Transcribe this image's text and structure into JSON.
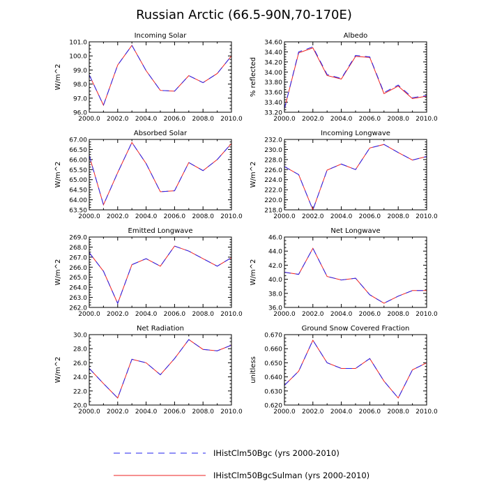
{
  "title": "Russian Arctic (66.5-90N,70-170E)",
  "legend": [
    {
      "label": "IHistClm50Bgc (yrs 2000-2010)",
      "color": "#2222ee",
      "dash": "dashed"
    },
    {
      "label": "IHistClm50BgcSulman (yrs 2000-2010)",
      "color": "#ee2222",
      "dash": "solid"
    }
  ],
  "chart_data": [
    {
      "type": "line",
      "title": "Incoming Solar",
      "ylabel": "W/m^2",
      "x": [
        2000,
        2001,
        2002,
        2003,
        2004,
        2005,
        2006,
        2007,
        2008,
        2009,
        2010
      ],
      "xlim": [
        2000,
        2010
      ],
      "ylim": [
        96.0,
        101.0
      ],
      "xticks": [
        "2000.0",
        "2002.0",
        "2004.0",
        "2006.0",
        "2008.0",
        "2010.0"
      ],
      "yticks": [
        "96.0",
        "97.0",
        "98.0",
        "99.0",
        "100.0",
        "101.0"
      ],
      "series": [
        {
          "values": [
            98.65,
            96.5,
            99.35,
            100.75,
            98.95,
            97.55,
            97.5,
            98.6,
            98.1,
            98.75,
            100.0
          ]
        },
        {
          "values": [
            98.65,
            96.5,
            99.35,
            100.75,
            98.95,
            97.55,
            97.5,
            98.6,
            98.1,
            98.75,
            100.0
          ]
        }
      ]
    },
    {
      "type": "line",
      "title": "Albedo",
      "ylabel": "% reflected",
      "x": [
        2000,
        2001,
        2002,
        2003,
        2004,
        2005,
        2006,
        2007,
        2008,
        2009,
        2010
      ],
      "xlim": [
        2000,
        2010
      ],
      "ylim": [
        33.2,
        34.6
      ],
      "xticks": [
        "2000.0",
        "2002.0",
        "2004.0",
        "2006.0",
        "2008.0",
        "2010.0"
      ],
      "yticks": [
        "33.20",
        "33.40",
        "33.60",
        "33.80",
        "34.00",
        "34.20",
        "34.40",
        "34.60"
      ],
      "series": [
        {
          "values": [
            33.27,
            34.4,
            34.5,
            33.95,
            33.87,
            34.33,
            34.3,
            33.59,
            33.74,
            33.49,
            33.53
          ]
        },
        {
          "values": [
            33.27,
            34.38,
            34.48,
            33.93,
            33.86,
            34.31,
            34.29,
            33.57,
            33.72,
            33.47,
            33.52
          ]
        }
      ]
    },
    {
      "type": "line",
      "title": "Absorbed Solar",
      "ylabel": "W/m^2",
      "x": [
        2000,
        2001,
        2002,
        2003,
        2004,
        2005,
        2006,
        2007,
        2008,
        2009,
        2010
      ],
      "xlim": [
        2000,
        2010
      ],
      "ylim": [
        63.5,
        67.0
      ],
      "xticks": [
        "2000.0",
        "2002.0",
        "2004.0",
        "2006.0",
        "2008.0",
        "2010.0"
      ],
      "yticks": [
        "63.50",
        "64.00",
        "64.50",
        "65.00",
        "65.50",
        "66.00",
        "66.50",
        "67.00"
      ],
      "series": [
        {
          "values": [
            66.2,
            63.75,
            65.35,
            66.85,
            65.8,
            64.4,
            64.45,
            65.85,
            65.45,
            66.0,
            66.8
          ]
        },
        {
          "values": [
            66.2,
            63.75,
            65.35,
            66.85,
            65.8,
            64.4,
            64.45,
            65.85,
            65.45,
            66.0,
            66.8
          ]
        }
      ]
    },
    {
      "type": "line",
      "title": "Incoming Longwave",
      "ylabel": "W/m^2",
      "x": [
        2000,
        2001,
        2002,
        2003,
        2004,
        2005,
        2006,
        2007,
        2008,
        2009,
        2010
      ],
      "xlim": [
        2000,
        2010
      ],
      "ylim": [
        218.0,
        232.0
      ],
      "xticks": [
        "2000.0",
        "2002.0",
        "2004.0",
        "2006.0",
        "2008.0",
        "2010.0"
      ],
      "yticks": [
        "218.0",
        "220.0",
        "222.0",
        "224.0",
        "226.0",
        "228.0",
        "230.0",
        "232.0"
      ],
      "series": [
        {
          "values": [
            226.6,
            225.0,
            218.0,
            225.9,
            227.1,
            226.0,
            230.3,
            231.0,
            229.4,
            227.9,
            228.6
          ]
        },
        {
          "values": [
            226.6,
            225.0,
            218.0,
            225.9,
            227.1,
            226.0,
            230.3,
            231.0,
            229.4,
            227.9,
            228.6
          ]
        }
      ]
    },
    {
      "type": "line",
      "title": "Emitted Longwave",
      "ylabel": "W/m^2",
      "x": [
        2000,
        2001,
        2002,
        2003,
        2004,
        2005,
        2006,
        2007,
        2008,
        2009,
        2010
      ],
      "xlim": [
        2000,
        2010
      ],
      "ylim": [
        262.0,
        269.0
      ],
      "xticks": [
        "2000.0",
        "2002.0",
        "2004.0",
        "2006.0",
        "2008.0",
        "2010.0"
      ],
      "yticks": [
        "262.0",
        "263.0",
        "264.0",
        "265.0",
        "266.0",
        "267.0",
        "268.0",
        "269.0"
      ],
      "series": [
        {
          "values": [
            267.45,
            265.6,
            262.4,
            266.25,
            266.85,
            266.1,
            268.1,
            267.6,
            266.85,
            266.1,
            266.95
          ]
        },
        {
          "values": [
            267.45,
            265.6,
            262.4,
            266.25,
            266.85,
            266.1,
            268.1,
            267.6,
            266.85,
            266.1,
            266.95
          ]
        }
      ]
    },
    {
      "type": "line",
      "title": "Net Longwave",
      "ylabel": "W/m^2",
      "x": [
        2000,
        2001,
        2002,
        2003,
        2004,
        2005,
        2006,
        2007,
        2008,
        2009,
        2010
      ],
      "xlim": [
        2000,
        2010
      ],
      "ylim": [
        36.0,
        46.0
      ],
      "xticks": [
        "2000.0",
        "2002.0",
        "2004.0",
        "2006.0",
        "2008.0",
        "2010.0"
      ],
      "yticks": [
        "36.0",
        "38.0",
        "40.0",
        "42.0",
        "44.0",
        "46.0"
      ],
      "series": [
        {
          "values": [
            41.0,
            40.7,
            44.4,
            40.4,
            39.9,
            40.15,
            37.8,
            36.6,
            37.6,
            38.4,
            38.4
          ]
        },
        {
          "values": [
            41.0,
            40.7,
            44.4,
            40.4,
            39.9,
            40.15,
            37.8,
            36.6,
            37.6,
            38.4,
            38.4
          ]
        }
      ]
    },
    {
      "type": "line",
      "title": "Net Radiation",
      "ylabel": "W/m^2",
      "x": [
        2000,
        2001,
        2002,
        2003,
        2004,
        2005,
        2006,
        2007,
        2008,
        2009,
        2010
      ],
      "xlim": [
        2000,
        2010
      ],
      "ylim": [
        20.0,
        30.0
      ],
      "xticks": [
        "2000.0",
        "2002.0",
        "2004.0",
        "2006.0",
        "2008.0",
        "2010.0"
      ],
      "yticks": [
        "20.0",
        "22.0",
        "24.0",
        "26.0",
        "28.0",
        "30.0"
      ],
      "series": [
        {
          "values": [
            25.2,
            23.05,
            21.0,
            26.5,
            26.0,
            24.3,
            26.6,
            29.3,
            27.9,
            27.7,
            28.5
          ]
        },
        {
          "values": [
            25.2,
            23.05,
            21.0,
            26.5,
            26.0,
            24.3,
            26.6,
            29.3,
            27.9,
            27.7,
            28.5
          ]
        }
      ]
    },
    {
      "type": "line",
      "title": "Ground Snow Covered Fraction",
      "ylabel": "unitless",
      "x": [
        2000,
        2001,
        2002,
        2003,
        2004,
        2005,
        2006,
        2007,
        2008,
        2009,
        2010
      ],
      "xlim": [
        2000,
        2010
      ],
      "ylim": [
        0.62,
        0.67
      ],
      "xticks": [
        "2000.0",
        "2002.0",
        "2004.0",
        "2006.0",
        "2008.0",
        "2010.0"
      ],
      "yticks": [
        "0.620",
        "0.630",
        "0.640",
        "0.650",
        "0.660",
        "0.670"
      ],
      "series": [
        {
          "values": [
            0.634,
            0.644,
            0.666,
            0.65,
            0.646,
            0.646,
            0.653,
            0.637,
            0.625,
            0.645,
            0.65
          ]
        },
        {
          "values": [
            0.634,
            0.644,
            0.666,
            0.65,
            0.646,
            0.646,
            0.653,
            0.637,
            0.625,
            0.645,
            0.65
          ]
        }
      ]
    }
  ]
}
